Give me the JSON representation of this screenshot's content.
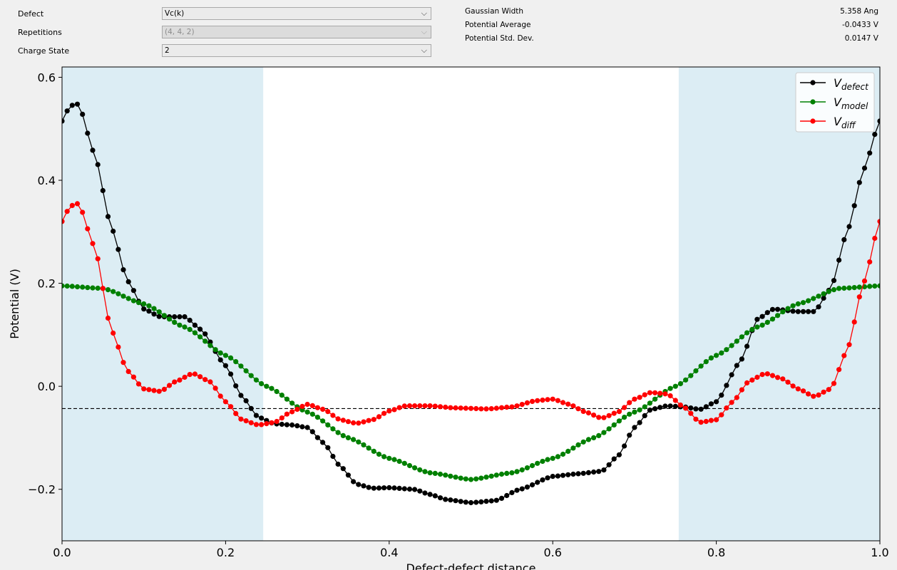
{
  "controls": {
    "defect": {
      "label": "Defect",
      "value": "Vc(k)"
    },
    "repetitions": {
      "label": "Repetitions",
      "value": "(4, 4, 2)"
    },
    "charge_state": {
      "label": "Charge State",
      "value": "2"
    }
  },
  "info": [
    {
      "key": "Gaussian Width",
      "value": "5.358 Ang"
    },
    {
      "key": "Potential Average",
      "value": "-0.0433 V"
    },
    {
      "key": "Potential Std. Dev.",
      "value": "0.0147 V"
    }
  ],
  "chart_data": {
    "type": "line",
    "xlabel": "Defect-defect distance",
    "ylabel": "Potential (V)",
    "xlim": [
      0,
      1
    ],
    "ylim": [
      -0.3,
      0.62
    ],
    "xticks": [
      "0.0",
      "0.2",
      "0.4",
      "0.6",
      "0.8",
      "1.0"
    ],
    "yticks": [
      "−0.2",
      "0.0",
      "0.2",
      "0.4",
      "0.6"
    ],
    "shaded_regions": [
      [
        0,
        0.246
      ],
      [
        0.754,
        1
      ]
    ],
    "shade_color": "#dcedf4",
    "hline": {
      "y": -0.0433,
      "style": "dashed",
      "color": "#000000"
    },
    "legend_position": "top-right",
    "series": [
      {
        "name": "defect",
        "color": "#000000",
        "knots": [
          [
            0,
            0.515
          ],
          [
            0.01,
            0.545
          ],
          [
            0.02,
            0.548
          ],
          [
            0.04,
            0.45
          ],
          [
            0.06,
            0.31
          ],
          [
            0.08,
            0.205
          ],
          [
            0.1,
            0.15
          ],
          [
            0.12,
            0.135
          ],
          [
            0.15,
            0.135
          ],
          [
            0.17,
            0.11
          ],
          [
            0.2,
            0.04
          ],
          [
            0.22,
            -0.02
          ],
          [
            0.24,
            -0.06
          ],
          [
            0.26,
            -0.073
          ],
          [
            0.28,
            -0.075
          ],
          [
            0.3,
            -0.08
          ],
          [
            0.32,
            -0.11
          ],
          [
            0.34,
            -0.155
          ],
          [
            0.36,
            -0.19
          ],
          [
            0.38,
            -0.198
          ],
          [
            0.4,
            -0.197
          ],
          [
            0.43,
            -0.2
          ],
          [
            0.45,
            -0.21
          ],
          [
            0.47,
            -0.22
          ],
          [
            0.5,
            -0.226
          ],
          [
            0.53,
            -0.222
          ],
          [
            0.56,
            -0.2
          ],
          [
            0.6,
            -0.175
          ],
          [
            0.63,
            -0.17
          ],
          [
            0.66,
            -0.165
          ],
          [
            0.68,
            -0.135
          ],
          [
            0.7,
            -0.08
          ],
          [
            0.72,
            -0.045
          ],
          [
            0.74,
            -0.038
          ],
          [
            0.76,
            -0.04
          ],
          [
            0.78,
            -0.045
          ],
          [
            0.8,
            -0.03
          ],
          [
            0.83,
            0.05
          ],
          [
            0.85,
            0.13
          ],
          [
            0.87,
            0.15
          ],
          [
            0.9,
            0.145
          ],
          [
            0.92,
            0.145
          ],
          [
            0.94,
            0.19
          ],
          [
            0.96,
            0.3
          ],
          [
            0.98,
            0.42
          ],
          [
            1,
            0.515
          ]
        ]
      },
      {
        "name": "model",
        "color": "#008000",
        "knots": [
          [
            0,
            0.195
          ],
          [
            0.05,
            0.19
          ],
          [
            0.1,
            0.16
          ],
          [
            0.15,
            0.115
          ],
          [
            0.2,
            0.06
          ],
          [
            0.25,
            0.0
          ],
          [
            0.3,
            -0.05
          ],
          [
            0.35,
            -0.1
          ],
          [
            0.4,
            -0.14
          ],
          [
            0.45,
            -0.168
          ],
          [
            0.5,
            -0.181
          ],
          [
            0.55,
            -0.168
          ],
          [
            0.6,
            -0.14
          ],
          [
            0.65,
            -0.1
          ],
          [
            0.7,
            -0.05
          ],
          [
            0.75,
            0.0
          ],
          [
            0.8,
            0.06
          ],
          [
            0.85,
            0.115
          ],
          [
            0.9,
            0.16
          ],
          [
            0.95,
            0.19
          ],
          [
            1,
            0.195
          ]
        ]
      },
      {
        "name": "diff",
        "color": "#ff0000",
        "knots": [
          [
            0,
            0.32
          ],
          [
            0.01,
            0.35
          ],
          [
            0.02,
            0.355
          ],
          [
            0.04,
            0.27
          ],
          [
            0.06,
            0.11
          ],
          [
            0.08,
            0.03
          ],
          [
            0.1,
            -0.005
          ],
          [
            0.12,
            -0.01
          ],
          [
            0.14,
            0.01
          ],
          [
            0.16,
            0.025
          ],
          [
            0.18,
            0.01
          ],
          [
            0.2,
            -0.03
          ],
          [
            0.22,
            -0.065
          ],
          [
            0.24,
            -0.075
          ],
          [
            0.26,
            -0.07
          ],
          [
            0.28,
            -0.05
          ],
          [
            0.3,
            -0.035
          ],
          [
            0.32,
            -0.045
          ],
          [
            0.34,
            -0.065
          ],
          [
            0.36,
            -0.072
          ],
          [
            0.38,
            -0.065
          ],
          [
            0.4,
            -0.048
          ],
          [
            0.42,
            -0.038
          ],
          [
            0.45,
            -0.038
          ],
          [
            0.48,
            -0.042
          ],
          [
            0.52,
            -0.044
          ],
          [
            0.55,
            -0.04
          ],
          [
            0.58,
            -0.028
          ],
          [
            0.6,
            -0.025
          ],
          [
            0.62,
            -0.035
          ],
          [
            0.64,
            -0.05
          ],
          [
            0.66,
            -0.062
          ],
          [
            0.68,
            -0.05
          ],
          [
            0.7,
            -0.025
          ],
          [
            0.72,
            -0.012
          ],
          [
            0.74,
            -0.015
          ],
          [
            0.76,
            -0.04
          ],
          [
            0.78,
            -0.07
          ],
          [
            0.8,
            -0.065
          ],
          [
            0.82,
            -0.03
          ],
          [
            0.84,
            0.01
          ],
          [
            0.86,
            0.025
          ],
          [
            0.88,
            0.015
          ],
          [
            0.9,
            -0.005
          ],
          [
            0.92,
            -0.02
          ],
          [
            0.94,
            -0.005
          ],
          [
            0.96,
            0.07
          ],
          [
            0.98,
            0.2
          ],
          [
            1,
            0.32
          ]
        ]
      }
    ]
  }
}
